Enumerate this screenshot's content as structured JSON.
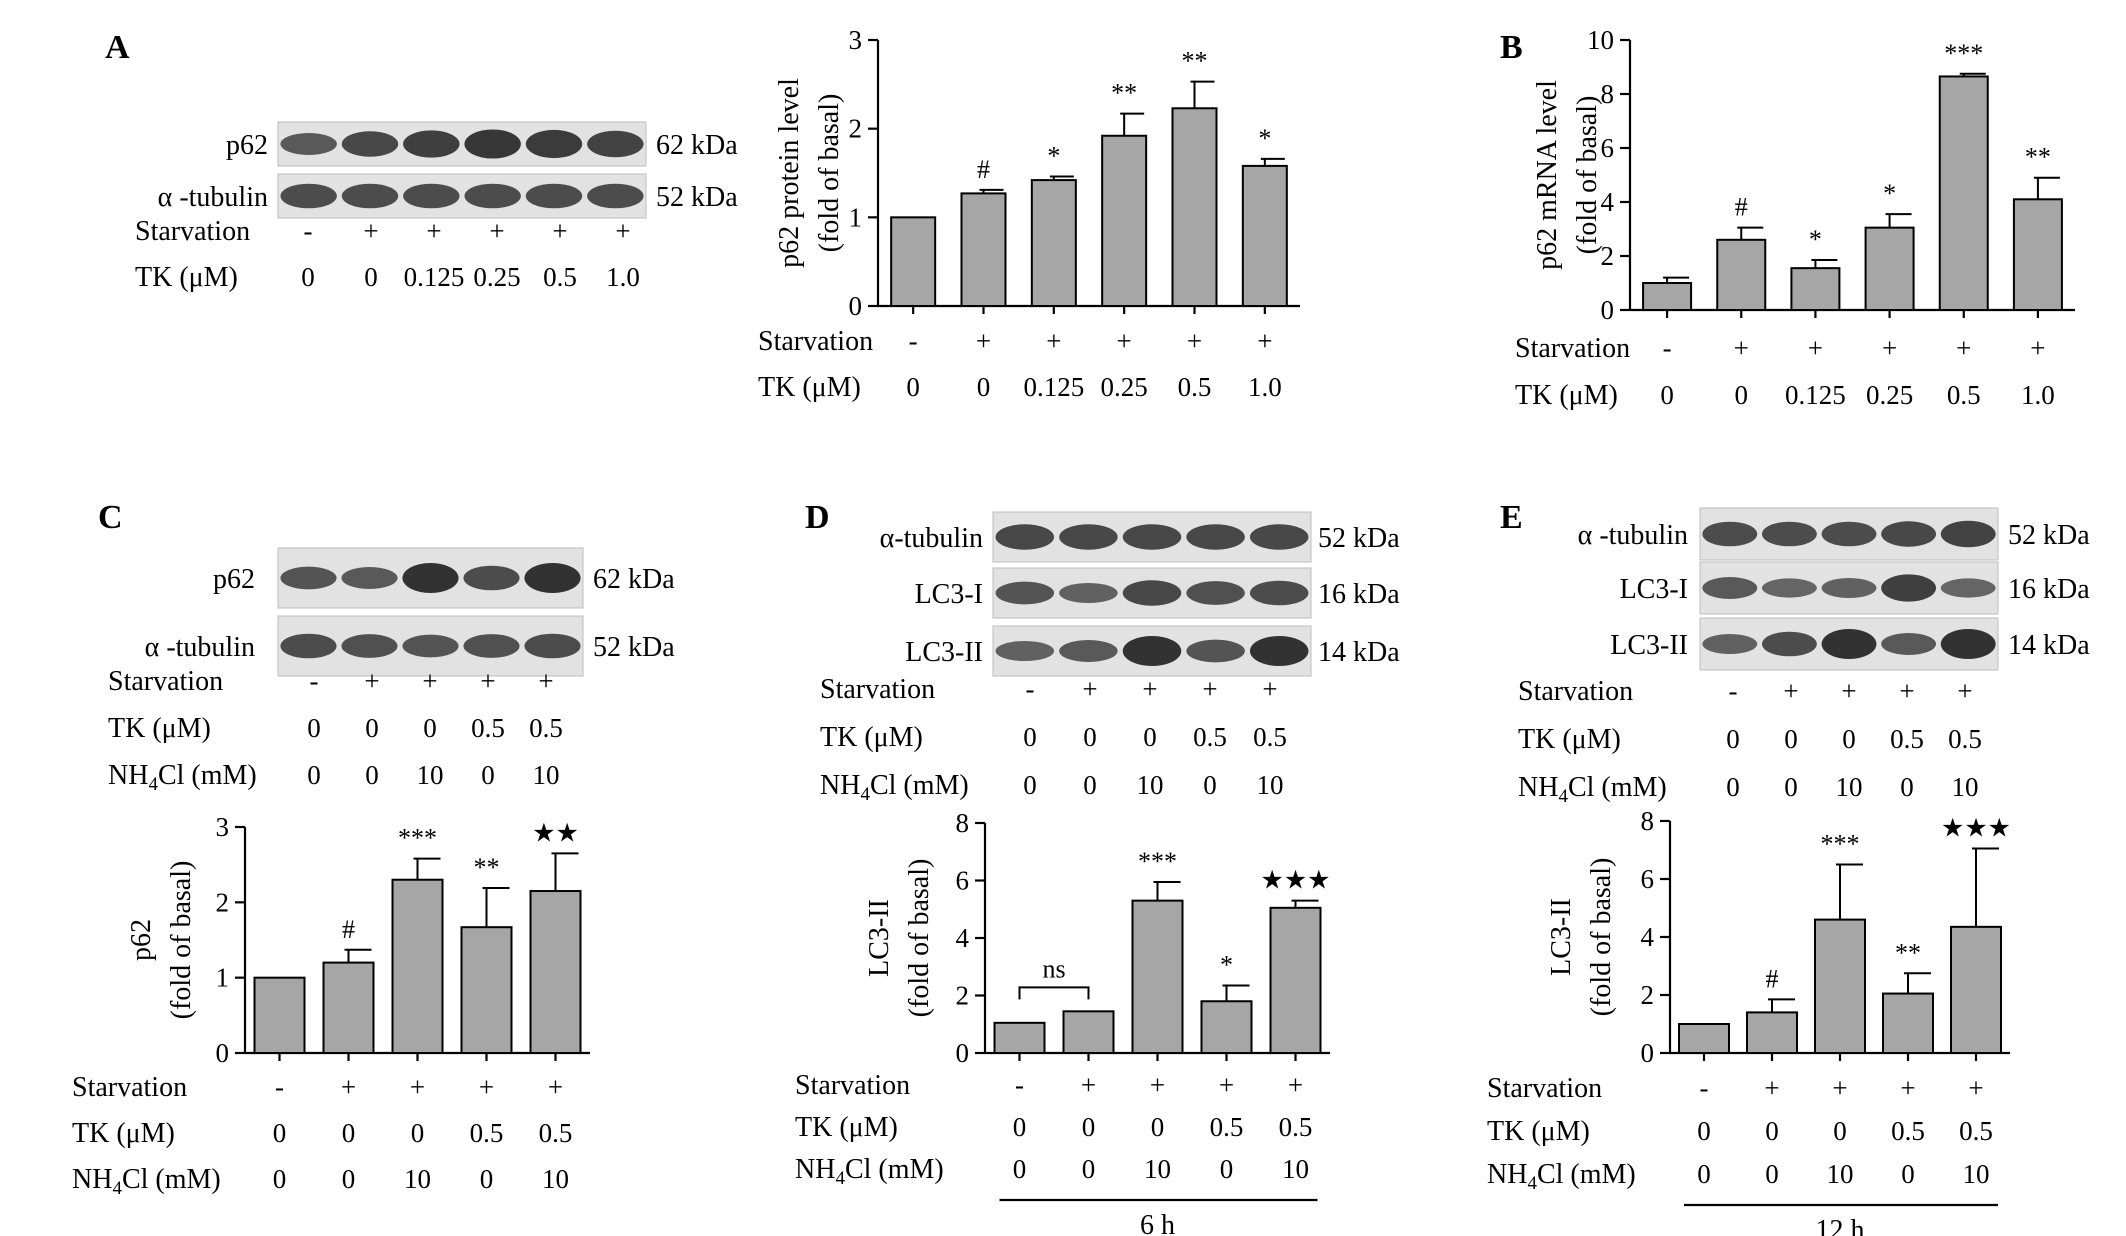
{
  "panels": {
    "A": {
      "letter": "A",
      "blot": {
        "lanes": 6,
        "rows": [
          {
            "label": "p62",
            "kda": "62 kDa",
            "intensity": [
              0.55,
              0.75,
              0.85,
              0.95,
              0.9,
              0.8
            ]
          },
          {
            "label": "α -tubulin",
            "kda": "52 kDa",
            "intensity": [
              0.7,
              0.7,
              0.7,
              0.7,
              0.7,
              0.7
            ]
          }
        ],
        "conditions": [
          {
            "label": "Starvation",
            "values": [
              "-",
              "+",
              "+",
              "+",
              "+",
              "+"
            ]
          },
          {
            "label": "TK (μM)",
            "values": [
              "0",
              "0",
              "0.125",
              "0.25",
              "0.5",
              "1.0"
            ]
          }
        ]
      }
    },
    "B": {
      "letter": "B"
    },
    "C": {
      "letter": "C",
      "blot": {
        "lanes": 5,
        "rows": [
          {
            "label": "p62",
            "kda": "62 kDa",
            "intensity": [
              0.6,
              0.55,
              1.0,
              0.7,
              1.0
            ]
          },
          {
            "label": "α -tubulin",
            "kda": "52 kDa",
            "intensity": [
              0.7,
              0.65,
              0.6,
              0.65,
              0.7
            ]
          }
        ],
        "conditions": [
          {
            "label": "Starvation",
            "values": [
              "-",
              "+",
              "+",
              "+",
              "+"
            ]
          },
          {
            "label": "TK (μM)",
            "values": [
              "0",
              "0",
              "0",
              "0.5",
              "0.5"
            ]
          },
          {
            "label": "NH4Cl (mM)",
            "values": [
              "0",
              "0",
              "10",
              "0",
              "10"
            ]
          }
        ]
      }
    },
    "D": {
      "letter": "D",
      "blot": {
        "lanes": 5,
        "rows": [
          {
            "label": "α-tubulin",
            "kda": "52 kDa",
            "intensity": [
              0.75,
              0.75,
              0.75,
              0.75,
              0.75
            ]
          },
          {
            "label": "LC3-I",
            "kda": "16 kDa",
            "intensity": [
              0.6,
              0.45,
              0.75,
              0.65,
              0.7
            ]
          },
          {
            "label": "LC3-II",
            "kda": "14 kDa",
            "intensity": [
              0.45,
              0.55,
              1.0,
              0.6,
              1.0
            ]
          }
        ],
        "conditions": [
          {
            "label": "Starvation",
            "values": [
              "-",
              "+",
              "+",
              "+",
              "+"
            ]
          },
          {
            "label": "TK (μM)",
            "values": [
              "0",
              "0",
              "0",
              "0.5",
              "0.5"
            ]
          },
          {
            "label": "NH4Cl (mM)",
            "values": [
              "0",
              "0",
              "10",
              "0",
              "10"
            ]
          }
        ]
      },
      "time": "6 h"
    },
    "E": {
      "letter": "E",
      "blot": {
        "lanes": 5,
        "rows": [
          {
            "label": "α -tubulin",
            "kda": "52 kDa",
            "intensity": [
              0.7,
              0.7,
              0.7,
              0.75,
              0.8
            ]
          },
          {
            "label": "LC3-I",
            "kda": "16 kDa",
            "intensity": [
              0.55,
              0.4,
              0.45,
              0.85,
              0.4
            ]
          },
          {
            "label": "LC3-II",
            "kda": "14 kDa",
            "intensity": [
              0.45,
              0.7,
              1.0,
              0.55,
              1.0
            ]
          }
        ],
        "conditions": [
          {
            "label": "Starvation",
            "values": [
              "-",
              "+",
              "+",
              "+",
              "+"
            ]
          },
          {
            "label": "TK (μM)",
            "values": [
              "0",
              "0",
              "0",
              "0.5",
              "0.5"
            ]
          },
          {
            "label": "NH4Cl (mM)",
            "values": [
              "0",
              "0",
              "10",
              "0",
              "10"
            ]
          }
        ]
      },
      "time": "12 h"
    }
  },
  "chart_data": [
    {
      "id": "A",
      "type": "bar",
      "ylabel": [
        "p62 protein level",
        "(fold of basal)"
      ],
      "ylim": [
        0,
        3
      ],
      "yticks": [
        0,
        1,
        2,
        3
      ],
      "values": [
        1.0,
        1.27,
        1.42,
        1.92,
        2.23,
        1.58
      ],
      "errors": [
        0,
        0.04,
        0.04,
        0.25,
        0.3,
        0.08
      ],
      "significance": [
        "",
        "#",
        "*",
        "**",
        "**",
        "*"
      ],
      "conditions": [
        {
          "label": "Starvation",
          "values": [
            "-",
            "+",
            "+",
            "+",
            "+",
            "+"
          ]
        },
        {
          "label": "TK (μM)",
          "values": [
            "0",
            "0",
            "0.125",
            "0.25",
            "0.5",
            "1.0"
          ]
        }
      ],
      "grid": false,
      "legend": "none"
    },
    {
      "id": "B",
      "type": "bar",
      "ylabel": [
        "p62 mRNA level",
        "(fold of basal)"
      ],
      "ylim": [
        0,
        10
      ],
      "yticks": [
        0,
        2,
        4,
        6,
        8,
        10
      ],
      "values": [
        1.0,
        2.6,
        1.55,
        3.05,
        8.65,
        4.1
      ],
      "errors": [
        0.2,
        0.45,
        0.3,
        0.5,
        0.1,
        0.8
      ],
      "significance": [
        "",
        "#",
        "*",
        "*",
        "***",
        "**"
      ],
      "conditions": [
        {
          "label": "Starvation",
          "values": [
            "-",
            "+",
            "+",
            "+",
            "+",
            "+"
          ]
        },
        {
          "label": "TK (μM)",
          "values": [
            "0",
            "0",
            "0.125",
            "0.25",
            "0.5",
            "1.0"
          ]
        }
      ],
      "grid": false,
      "legend": "none"
    },
    {
      "id": "C",
      "type": "bar",
      "ylabel": [
        "p62",
        "(fold of basal)"
      ],
      "ylim": [
        0,
        3
      ],
      "yticks": [
        0,
        1,
        2,
        3
      ],
      "values": [
        1.0,
        1.2,
        2.3,
        1.67,
        2.15
      ],
      "errors": [
        0,
        0.17,
        0.28,
        0.52,
        0.5
      ],
      "significance": [
        "",
        "#",
        "***",
        "**",
        "★★"
      ],
      "conditions": [
        {
          "label": "Starvation",
          "values": [
            "-",
            "+",
            "+",
            "+",
            "+"
          ]
        },
        {
          "label": "TK (μM)",
          "values": [
            "0",
            "0",
            "0",
            "0.5",
            "0.5"
          ]
        },
        {
          "label": "NH4Cl (mM)",
          "values": [
            "0",
            "0",
            "10",
            "0",
            "10"
          ]
        }
      ],
      "grid": false,
      "legend": "none"
    },
    {
      "id": "D",
      "type": "bar",
      "ylabel": [
        "LC3-II",
        "(fold of basal)"
      ],
      "ylim": [
        0,
        8
      ],
      "yticks": [
        0,
        2,
        4,
        6,
        8
      ],
      "values": [
        1.05,
        1.45,
        5.3,
        1.8,
        5.05
      ],
      "errors": [
        0,
        0,
        0.65,
        0.55,
        0.25
      ],
      "significance": [
        "",
        "",
        "***",
        "*",
        "★★★"
      ],
      "bracket": {
        "from": 0,
        "to": 1,
        "label": "ns"
      },
      "conditions": [
        {
          "label": "Starvation",
          "values": [
            "-",
            "+",
            "+",
            "+",
            "+"
          ]
        },
        {
          "label": "TK (μM)",
          "values": [
            "0",
            "0",
            "0",
            "0.5",
            "0.5"
          ]
        },
        {
          "label": "NH4Cl (mM)",
          "values": [
            "0",
            "0",
            "10",
            "0",
            "10"
          ]
        }
      ],
      "time": "6 h",
      "grid": false,
      "legend": "none"
    },
    {
      "id": "E",
      "type": "bar",
      "ylabel": [
        "LC3-II",
        "(fold of basal)"
      ],
      "ylim": [
        0,
        8
      ],
      "yticks": [
        0,
        2,
        4,
        6,
        8
      ],
      "values": [
        1.0,
        1.4,
        4.6,
        2.05,
        4.35
      ],
      "errors": [
        0,
        0.45,
        1.9,
        0.7,
        2.7
      ],
      "significance": [
        "",
        "#",
        "***",
        "**",
        "★★★"
      ],
      "conditions": [
        {
          "label": "Starvation",
          "values": [
            "-",
            "+",
            "+",
            "+",
            "+"
          ]
        },
        {
          "label": "TK (μM)",
          "values": [
            "0",
            "0",
            "0",
            "0.5",
            "0.5"
          ]
        },
        {
          "label": "NH4Cl (mM)",
          "values": [
            "0",
            "0",
            "10",
            "0",
            "10"
          ]
        }
      ],
      "time": "12 h",
      "grid": false,
      "legend": "none"
    }
  ]
}
